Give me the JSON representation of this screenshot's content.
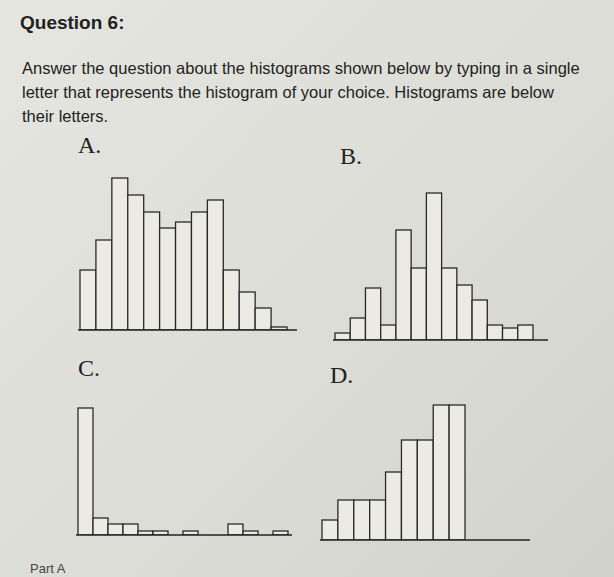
{
  "question": {
    "title": "Question 6:",
    "text": "Answer the question about the histograms shown below by typing in a single letter that represents the histogram of your choice. Histograms are below their letters.",
    "footer": "Part A"
  },
  "chart_data": [
    {
      "type": "histogram",
      "title": "A.",
      "bins": [
        0,
        1,
        2,
        3,
        4,
        5,
        6,
        7,
        8,
        9,
        10,
        11,
        12,
        13
      ],
      "values": [
        6,
        9,
        15.2,
        13.5,
        11.8,
        10.2,
        10.8,
        11.8,
        13,
        6,
        3.8,
        2.2,
        0.3
      ],
      "ylim": [
        0,
        16
      ],
      "tick_labels": false,
      "color": "#eceae4"
    },
    {
      "type": "histogram",
      "title": "B.",
      "bins": [
        0,
        1,
        2,
        3,
        4,
        5,
        6,
        7,
        8,
        9,
        10,
        11,
        12,
        13
      ],
      "values": [
        0.7,
        2.2,
        5.2,
        1.5,
        11,
        7.2,
        14.7,
        7.2,
        5.5,
        4,
        1.5,
        1.2,
        1.5
      ],
      "ylim": [
        0,
        16
      ],
      "tick_labels": false,
      "color": "#eceae4"
    },
    {
      "type": "histogram",
      "title": "C.",
      "bins": [
        0,
        1,
        2,
        3,
        4,
        5,
        6,
        7,
        8,
        9,
        10,
        11,
        12,
        13,
        14
      ],
      "values": [
        12.7,
        1.7,
        1.1,
        1.1,
        0.4,
        0.4,
        0,
        0.4,
        0,
        0,
        1.1,
        0.4,
        0,
        0.4
      ],
      "ylim": [
        0,
        16
      ],
      "tick_labels": false,
      "color": "#eceae4"
    },
    {
      "type": "histogram",
      "title": "D.",
      "bins": [
        0,
        1,
        2,
        3,
        4,
        5,
        6,
        7,
        8,
        9
      ],
      "values": [
        2,
        4,
        4,
        4,
        6.8,
        10,
        10,
        13.5,
        13.5
      ],
      "ylim": [
        0,
        16
      ],
      "tick_labels": false,
      "color": "#eceae4"
    }
  ]
}
